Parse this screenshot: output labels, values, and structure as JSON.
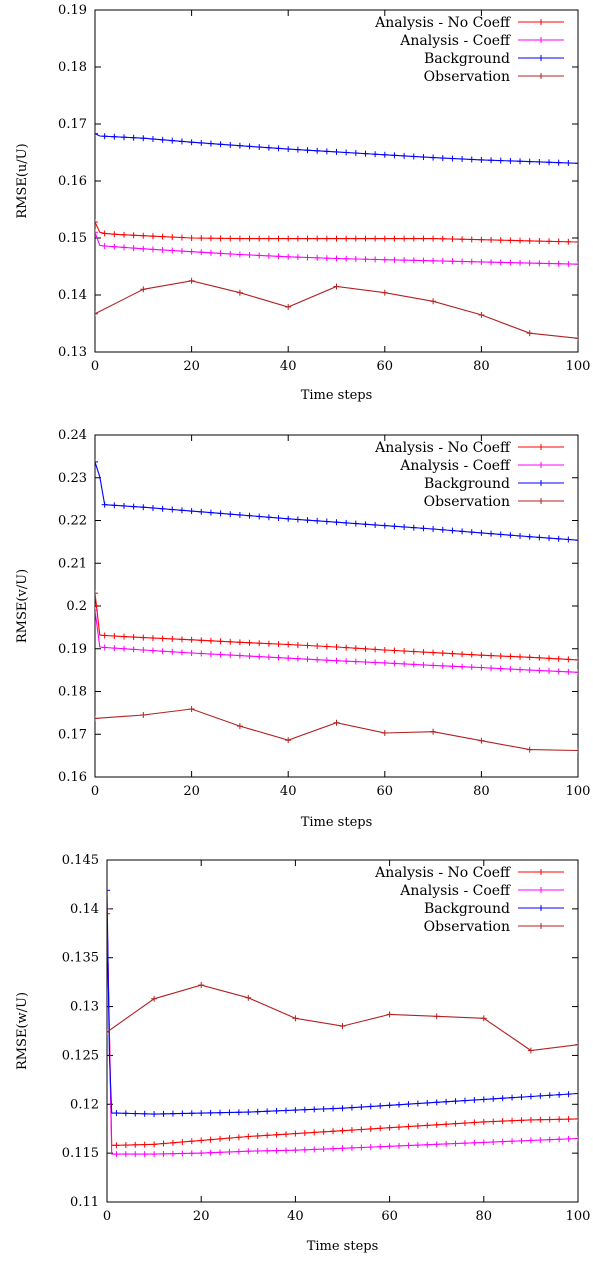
{
  "chart_data": [
    {
      "type": "line",
      "xlabel": "Time steps",
      "ylabel": "RMSE(u/U)",
      "xlim": [
        0,
        100
      ],
      "ylim": [
        0.13,
        0.19
      ],
      "xticks": [
        "0",
        "20",
        "40",
        "60",
        "80",
        "100"
      ],
      "yticks": [
        "0.13",
        "0.14",
        "0.15",
        "0.16",
        "0.17",
        "0.18",
        "0.19"
      ],
      "legend_position": "top-right",
      "series": [
        {
          "name": "Analysis - No Coeff",
          "color": "#ff0000",
          "points": [
            [
              0,
              0.1528
            ],
            [
              1,
              0.151
            ],
            [
              2,
              0.1508
            ],
            [
              5,
              0.1506
            ],
            [
              10,
              0.1504
            ],
            [
              20,
              0.15
            ],
            [
              30,
              0.1499
            ],
            [
              40,
              0.1499
            ],
            [
              50,
              0.1499
            ],
            [
              60,
              0.1499
            ],
            [
              70,
              0.1499
            ],
            [
              80,
              0.1497
            ],
            [
              90,
              0.1495
            ],
            [
              100,
              0.1493
            ]
          ]
        },
        {
          "name": "Analysis - Coeff",
          "color": "#ff00ff",
          "points": [
            [
              0,
              0.151
            ],
            [
              1,
              0.1487
            ],
            [
              2,
              0.1486
            ],
            [
              10,
              0.1481
            ],
            [
              20,
              0.1476
            ],
            [
              30,
              0.1471
            ],
            [
              40,
              0.1467
            ],
            [
              50,
              0.1464
            ],
            [
              60,
              0.1462
            ],
            [
              70,
              0.146
            ],
            [
              80,
              0.1458
            ],
            [
              90,
              0.1456
            ],
            [
              100,
              0.1454
            ]
          ]
        },
        {
          "name": "Background",
          "color": "#0000ff",
          "points": [
            [
              0,
              0.1683
            ],
            [
              1,
              0.1679
            ],
            [
              10,
              0.1675
            ],
            [
              20,
              0.1668
            ],
            [
              30,
              0.1662
            ],
            [
              40,
              0.1656
            ],
            [
              50,
              0.1651
            ],
            [
              60,
              0.1646
            ],
            [
              70,
              0.1641
            ],
            [
              80,
              0.1637
            ],
            [
              90,
              0.1634
            ],
            [
              100,
              0.1631
            ]
          ]
        },
        {
          "name": "Observation",
          "color": "#b22222",
          "points": [
            [
              0,
              0.1367
            ],
            [
              10,
              0.141
            ],
            [
              20,
              0.1425
            ],
            [
              30,
              0.1404
            ],
            [
              40,
              0.1379
            ],
            [
              50,
              0.1415
            ],
            [
              60,
              0.1404
            ],
            [
              70,
              0.1389
            ],
            [
              80,
              0.1365
            ],
            [
              90,
              0.1333
            ],
            [
              100,
              0.1324
            ]
          ]
        }
      ]
    },
    {
      "type": "line",
      "xlabel": "Time steps",
      "ylabel": "RMSE(v/U)",
      "xlim": [
        0,
        100
      ],
      "ylim": [
        0.16,
        0.24
      ],
      "xticks": [
        "0",
        "20",
        "40",
        "60",
        "80",
        "100"
      ],
      "yticks": [
        "0.16",
        "0.17",
        "0.18",
        "0.19",
        "0.2",
        "0.21",
        "0.22",
        "0.23",
        "0.24"
      ],
      "legend_position": "top-right",
      "series": [
        {
          "name": "Analysis - No Coeff",
          "color": "#ff0000",
          "points": [
            [
              0,
              0.203
            ],
            [
              1,
              0.1932
            ],
            [
              2,
              0.1931
            ],
            [
              10,
              0.1926
            ],
            [
              20,
              0.1921
            ],
            [
              30,
              0.1915
            ],
            [
              40,
              0.191
            ],
            [
              50,
              0.1904
            ],
            [
              60,
              0.1897
            ],
            [
              70,
              0.1891
            ],
            [
              80,
              0.1885
            ],
            [
              90,
              0.188
            ],
            [
              100,
              0.1874
            ]
          ]
        },
        {
          "name": "Analysis - Coeff",
          "color": "#ff00ff",
          "points": [
            [
              0,
              0.199
            ],
            [
              1,
              0.1904
            ],
            [
              2,
              0.1903
            ],
            [
              10,
              0.1897
            ],
            [
              20,
              0.189
            ],
            [
              30,
              0.1884
            ],
            [
              40,
              0.1878
            ],
            [
              50,
              0.1872
            ],
            [
              60,
              0.1867
            ],
            [
              70,
              0.1861
            ],
            [
              80,
              0.1856
            ],
            [
              90,
              0.185
            ],
            [
              100,
              0.1845
            ]
          ]
        },
        {
          "name": "Background",
          "color": "#0000ff",
          "points": [
            [
              0,
              0.2337
            ],
            [
              1,
              0.2302
            ],
            [
              2,
              0.2237
            ],
            [
              10,
              0.2231
            ],
            [
              20,
              0.2222
            ],
            [
              30,
              0.2213
            ],
            [
              40,
              0.2204
            ],
            [
              50,
              0.2196
            ],
            [
              60,
              0.2188
            ],
            [
              70,
              0.218
            ],
            [
              80,
              0.2171
            ],
            [
              90,
              0.2162
            ],
            [
              100,
              0.2154
            ]
          ]
        },
        {
          "name": "Observation",
          "color": "#b22222",
          "points": [
            [
              0,
              0.1737
            ],
            [
              10,
              0.1745
            ],
            [
              20,
              0.1759
            ],
            [
              30,
              0.1719
            ],
            [
              40,
              0.1686
            ],
            [
              50,
              0.1727
            ],
            [
              60,
              0.1703
            ],
            [
              70,
              0.1706
            ],
            [
              80,
              0.1685
            ],
            [
              90,
              0.1664
            ],
            [
              100,
              0.1662
            ]
          ]
        }
      ]
    },
    {
      "type": "line",
      "xlabel": "Time steps",
      "ylabel": "RMSE(w/U)",
      "xlim": [
        0,
        100
      ],
      "ylim": [
        0.11,
        0.145
      ],
      "xticks": [
        "0",
        "20",
        "40",
        "60",
        "80",
        "100"
      ],
      "yticks": [
        "0.11",
        "0.115",
        "0.12",
        "0.125",
        "0.13",
        "0.135",
        "0.14",
        "0.145"
      ],
      "legend_position": "top-right",
      "series": [
        {
          "name": "Analysis - No Coeff",
          "color": "#ff0000",
          "points": [
            [
              0,
              0.1395
            ],
            [
              1,
              0.1158
            ],
            [
              2,
              0.1158
            ],
            [
              10,
              0.1159
            ],
            [
              20,
              0.1163
            ],
            [
              30,
              0.1167
            ],
            [
              40,
              0.117
            ],
            [
              50,
              0.1173
            ],
            [
              60,
              0.1176
            ],
            [
              70,
              0.1179
            ],
            [
              80,
              0.1182
            ],
            [
              90,
              0.1184
            ],
            [
              100,
              0.1185
            ]
          ]
        },
        {
          "name": "Analysis - Coeff",
          "color": "#ff00ff",
          "points": [
            [
              0,
              0.14
            ],
            [
              1,
              0.1149
            ],
            [
              2,
              0.1149
            ],
            [
              10,
              0.1149
            ],
            [
              20,
              0.115
            ],
            [
              30,
              0.1152
            ],
            [
              40,
              0.1153
            ],
            [
              50,
              0.1155
            ],
            [
              60,
              0.1157
            ],
            [
              70,
              0.1159
            ],
            [
              80,
              0.1161
            ],
            [
              90,
              0.1163
            ],
            [
              100,
              0.1165
            ]
          ]
        },
        {
          "name": "Background",
          "color": "#0000ff",
          "points": [
            [
              0,
              0.1419
            ],
            [
              0.5,
              0.125
            ],
            [
              1,
              0.1191
            ],
            [
              2,
              0.1191
            ],
            [
              10,
              0.119
            ],
            [
              20,
              0.1191
            ],
            [
              30,
              0.1192
            ],
            [
              40,
              0.1194
            ],
            [
              50,
              0.1196
            ],
            [
              60,
              0.1199
            ],
            [
              70,
              0.1202
            ],
            [
              80,
              0.1205
            ],
            [
              90,
              0.1208
            ],
            [
              100,
              0.1211
            ]
          ]
        },
        {
          "name": "Observation",
          "color": "#b22222",
          "points": [
            [
              0,
              0.1274
            ],
            [
              10,
              0.1308
            ],
            [
              20,
              0.1322
            ],
            [
              30,
              0.1309
            ],
            [
              40,
              0.1288
            ],
            [
              50,
              0.128
            ],
            [
              60,
              0.1292
            ],
            [
              70,
              0.129
            ],
            [
              80,
              0.1288
            ],
            [
              90,
              0.1255
            ],
            [
              100,
              0.1261
            ]
          ]
        }
      ]
    }
  ]
}
